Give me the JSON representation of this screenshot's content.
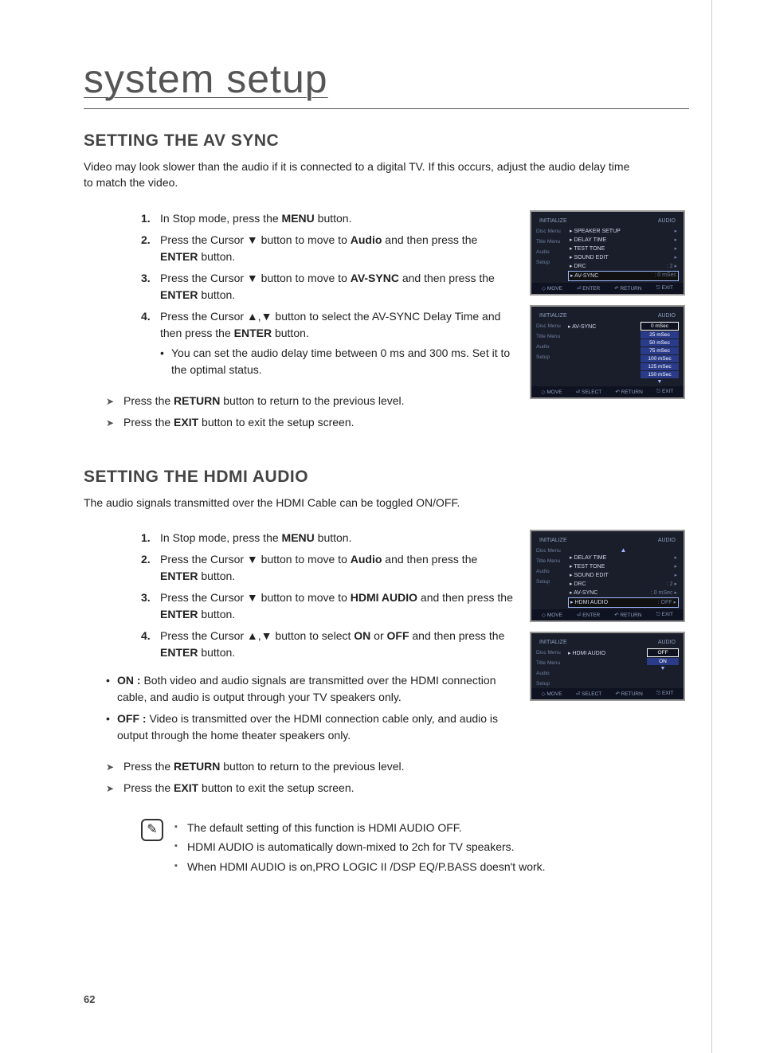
{
  "page": {
    "title": "system setup",
    "number": "62"
  },
  "avsync": {
    "heading": "SETTING THE AV SYNC",
    "intro": "Video may look slower than the audio if it is connected to a digital TV. If this occurs, adjust the audio delay time to match the video.",
    "steps": [
      {
        "pre": "In Stop mode, press the ",
        "bold": "MENU",
        "post": " button."
      },
      {
        "pre": "Press the Cursor ▼ button to move to ",
        "bold": "Audio",
        "post": " and then press the ",
        "bold2": "ENTER",
        "post2": " button."
      },
      {
        "pre": "Press the Cursor ▼ button to move to ",
        "bold": "AV-SYNC",
        "post": " and then press the ",
        "bold2": "ENTER",
        "post2": " button."
      },
      {
        "pre": "Press the Cursor ▲,▼ button to select the AV-SYNC Delay Time and then press the ",
        "bold": "ENTER",
        "post": " button."
      }
    ],
    "sub_bullet": "You can set the audio delay time between 0 ms and 300 ms. Set it to the optimal status.",
    "gt": [
      {
        "pre": "Press the ",
        "bold": "RETURN",
        "post": " button to return to the previous level."
      },
      {
        "pre": "Press the ",
        "bold": "EXIT",
        "post": " button to exit the setup screen."
      }
    ]
  },
  "hdmi": {
    "heading": "SETTING THE HDMI AUDIO",
    "intro": "The audio signals transmitted over the HDMI Cable can be toggled ON/OFF.",
    "steps": [
      {
        "pre": "In Stop mode, press the ",
        "bold": "MENU",
        "post": " button."
      },
      {
        "pre": "Press the Cursor  ▼ button to move to ",
        "bold": "Audio",
        "post": " and then press the ",
        "bold2": "ENTER",
        "post2": " button."
      },
      {
        "pre": "Press the Cursor ▼ button to move to ",
        "bold": "HDMI AUDIO",
        "post": " and then press the ",
        "bold2": "ENTER",
        "post2": " button."
      },
      {
        "pre": "Press the Cursor ▲,▼ button to select ",
        "bold": "ON",
        "post": " or ",
        "bold2": "OFF",
        "post2": " and then press the ",
        "bold3": "ENTER",
        "post3": " button."
      }
    ],
    "describe": [
      {
        "label": "ON :",
        "body": "Both video and audio signals are transmitted over the HDMI connection cable, and audio is output through your TV speakers only."
      },
      {
        "label": "OFF :",
        "body": "Video is transmitted over the HDMI connection cable only, and audio is output through the home theater speakers only."
      }
    ],
    "gt": [
      {
        "pre": "Press the ",
        "bold": "RETURN",
        "post": " button to return to the previous level."
      },
      {
        "pre": "Press the ",
        "bold": "EXIT",
        "post": " button to exit the setup screen."
      }
    ],
    "notes": [
      "The default setting of this function is HDMI AUDIO OFF.",
      "HDMI AUDIO is automatically down-mixed to 2ch for TV speakers.",
      "When HDMI AUDIO is on,PRO LOGIC II /DSP EQ/P.BASS doesn't work."
    ]
  },
  "osd": {
    "colors": {
      "bg": "#1a1e2a",
      "text": "#cfd6e8",
      "dim": "#6f7fa0",
      "highlight_border": "#9fb8ff",
      "opt_bg": "#2a3b8a",
      "footer_bg": "#0f1220"
    },
    "hdr_initialize": "INITIALIZE",
    "hdr_audio": "AUDIO",
    "side": [
      "Disc Menu",
      "Title Menu",
      "Audio",
      "Setup"
    ],
    "foot_move": "MOVE",
    "foot_enter": "ENTER",
    "foot_select": "SELECT",
    "foot_return": "RETURN",
    "foot_exit": "EXIT",
    "screen1": {
      "rows": [
        {
          "l": "▸ SPEAKER SETUP",
          "r": "▸"
        },
        {
          "l": "▸ DELAY TIME",
          "r": "▸"
        },
        {
          "l": "▸ TEST TONE",
          "r": "▸"
        },
        {
          "l": "▸ SOUND EDIT",
          "r": "▸"
        },
        {
          "l": "▸ DRC",
          "r": ": 2        ▸"
        },
        {
          "l": "▸ AV-SYNC",
          "r": ": 0 mSec",
          "sel": true
        }
      ]
    },
    "screen2": {
      "left_label": "▸ AV-SYNC",
      "options": [
        "0 mSec",
        "25 mSec",
        "50 mSec",
        "75 mSec",
        "100 mSec",
        "125 mSec",
        "150 mSec"
      ],
      "sel_index": 0
    },
    "screen3": {
      "rows": [
        {
          "l": "▸ DELAY TIME",
          "r": "▸"
        },
        {
          "l": "▸ TEST TONE",
          "r": "▸"
        },
        {
          "l": "▸ SOUND EDIT",
          "r": "▸"
        },
        {
          "l": "▸ DRC",
          "r": ": 2        ▸"
        },
        {
          "l": "▸ AV-SYNC",
          "r": ": 0 mSec   ▸"
        },
        {
          "l": "▸ HDMI AUDIO",
          "r": ": OFF     ▸",
          "sel": true
        }
      ]
    },
    "screen4": {
      "left_label": "▸ HDMI AUDIO",
      "options": [
        "OFF",
        "ON"
      ],
      "sel_index": 0
    }
  }
}
